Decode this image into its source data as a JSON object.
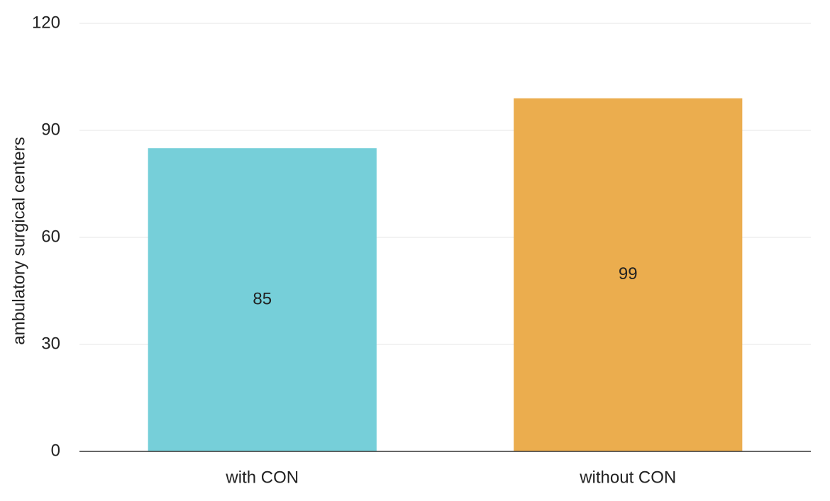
{
  "chart_data": {
    "type": "bar",
    "y_label": "ambulatory surgical centers",
    "categories": [
      "with CON",
      "without CON"
    ],
    "values": [
      85,
      99
    ],
    "colors": [
      "#76cfd9",
      "#ebad4e"
    ],
    "ylim": [
      0,
      120
    ],
    "yticks": [
      0,
      30,
      60,
      90,
      120
    ],
    "grid": true
  }
}
